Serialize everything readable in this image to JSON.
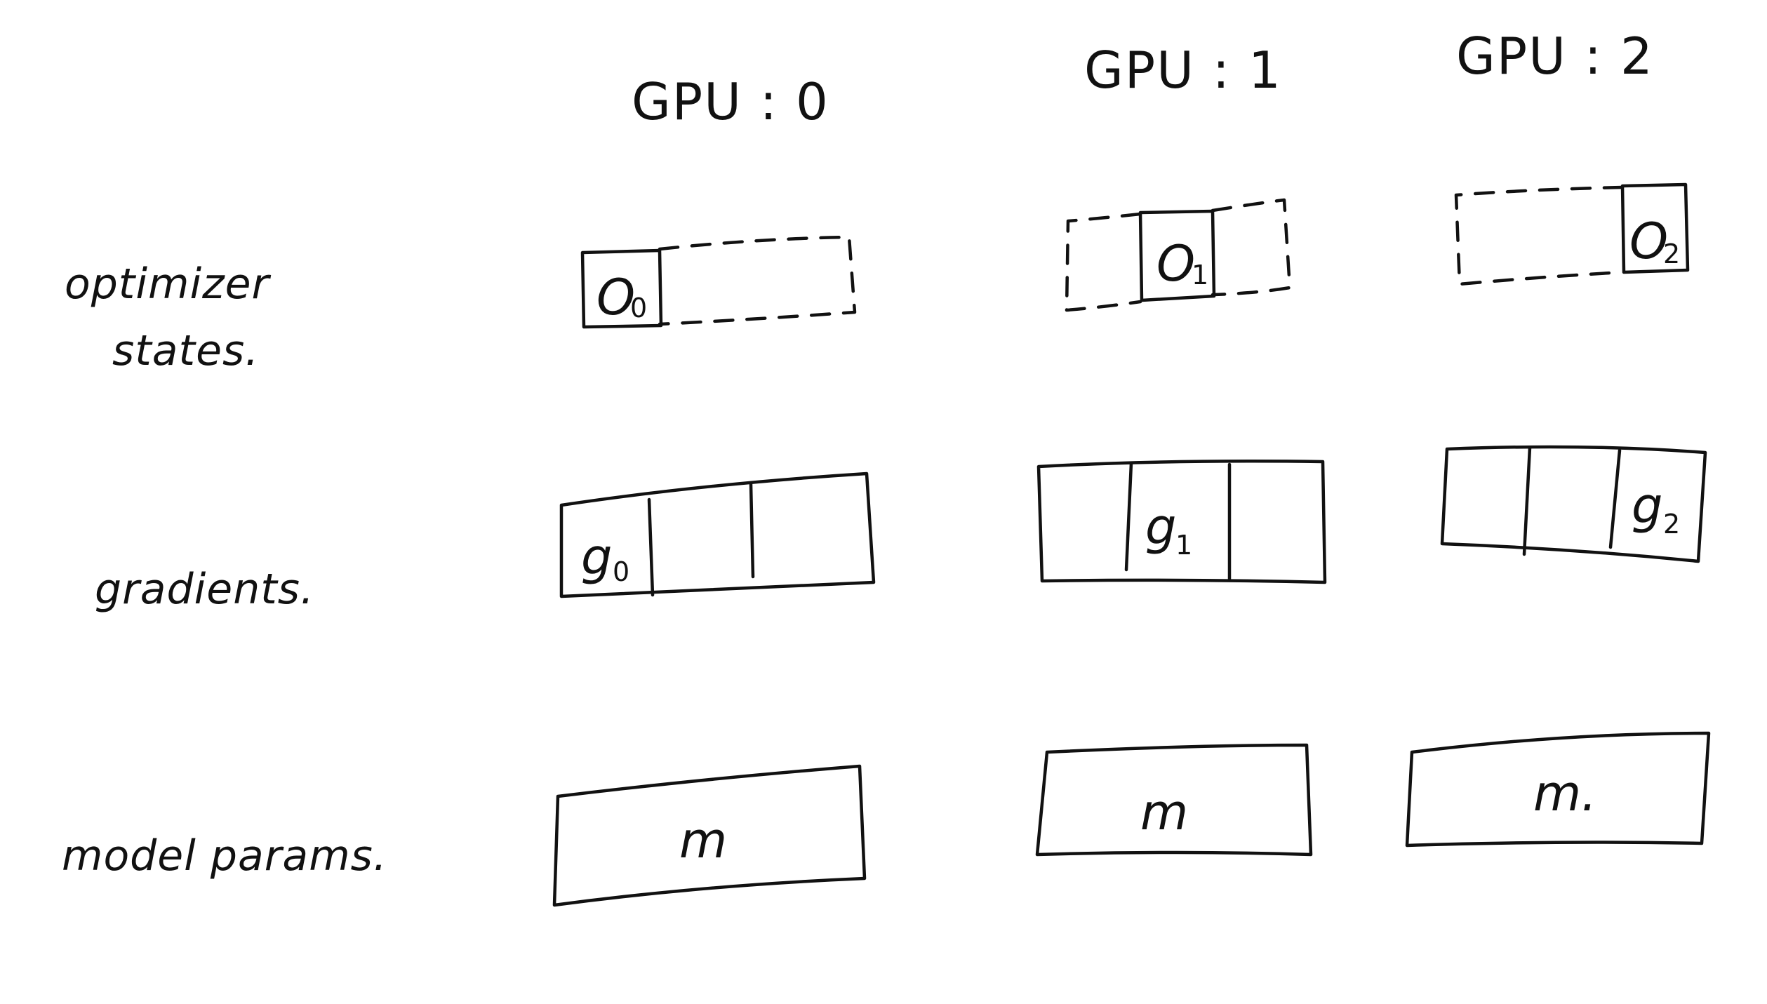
{
  "columns": [
    {
      "label": "GPU : 0"
    },
    {
      "label": "GPU : 1"
    },
    {
      "label": "GPU : 2"
    }
  ],
  "rows": {
    "optimizer": {
      "line1": "optimizer",
      "line2": "states."
    },
    "gradients": {
      "label": "gradients."
    },
    "params": {
      "label": "model   params."
    }
  },
  "optimizer_cells": [
    {
      "main": "O",
      "sub": "0"
    },
    {
      "main": "O",
      "sub": "1"
    },
    {
      "main": "O",
      "sub": "2"
    }
  ],
  "gradient_cells": [
    {
      "main": "g",
      "sub": "0"
    },
    {
      "main": "g",
      "sub": "1"
    },
    {
      "main": "g",
      "sub": "2"
    }
  ],
  "param_cells": [
    {
      "label": "m"
    },
    {
      "label": "m"
    },
    {
      "label": "m."
    }
  ]
}
